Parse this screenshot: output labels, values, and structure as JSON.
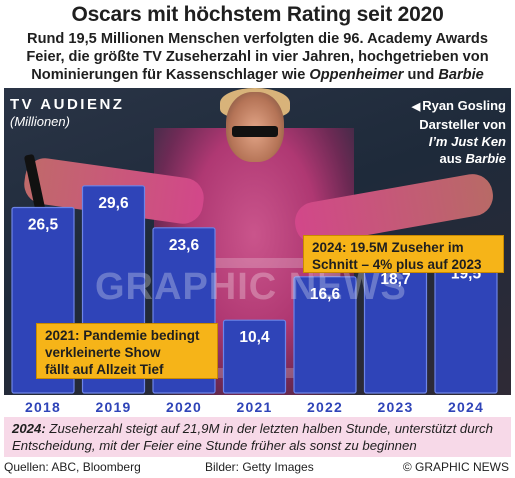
{
  "header": {
    "title": "Oscars mit höchstem Rating seit 2020",
    "subtitle_part1": "Rund 19,5 Millionen Menschen verfolgten die 96. Academy Awards Feier, die größte TV Zuseherzahl in vier Jahren, hochgetrieben von Nominierungen für Kassenschlager wie ",
    "subtitle_movie1": "Oppenheimer",
    "subtitle_and": " und ",
    "subtitle_movie2": "Barbie"
  },
  "chart_labels": {
    "section": "TV AUDIENZ",
    "unit": "(Millionen)"
  },
  "photo_credit": {
    "line1": "Ryan Gosling",
    "line2": "Darsteller von",
    "line3": "I’m Just Ken",
    "line4_prefix": "aus ",
    "line4_movie": "Barbie"
  },
  "chart_data": {
    "type": "bar",
    "categories": [
      "2018",
      "2019",
      "2020",
      "2021",
      "2022",
      "2023",
      "2024"
    ],
    "values": [
      26.5,
      29.6,
      23.6,
      10.4,
      16.6,
      18.7,
      19.5
    ],
    "value_labels": [
      "26,5",
      "29,6",
      "23,6",
      "10,4",
      "16,6",
      "18,7",
      "19,5"
    ],
    "ylim": [
      0,
      33
    ],
    "color": "#2f44b8"
  },
  "callouts": {
    "c2021_line1": "2021: Pandemie bedingt",
    "c2021_line2": "verkleinerte Show",
    "c2021_line3": "fällt auf Allzeit Tief",
    "c2024_line1": "2024: 19.5M Zuseher im",
    "c2024_line2": "Schnitt – 4% plus auf 2023"
  },
  "watermark": "GRAPHIC NEWS",
  "footnote": {
    "year": "2024:",
    "text": " Zuseherzahl steigt auf 21,9M in der letzten halben Stunde, unterstützt durch Entscheidung, mit der Feier eine Stunde früher als sonst zu beginnen"
  },
  "footer": {
    "sources": "Quellen: ABC, Bloomberg",
    "images": "Bilder: Getty Images",
    "copyright": "© GRAPHIC NEWS"
  },
  "colors": {
    "bar": "#2f44b8",
    "callout": "#f6b418",
    "footnote_bg": "#f7d9e8",
    "year_text": "#2f44b8"
  }
}
